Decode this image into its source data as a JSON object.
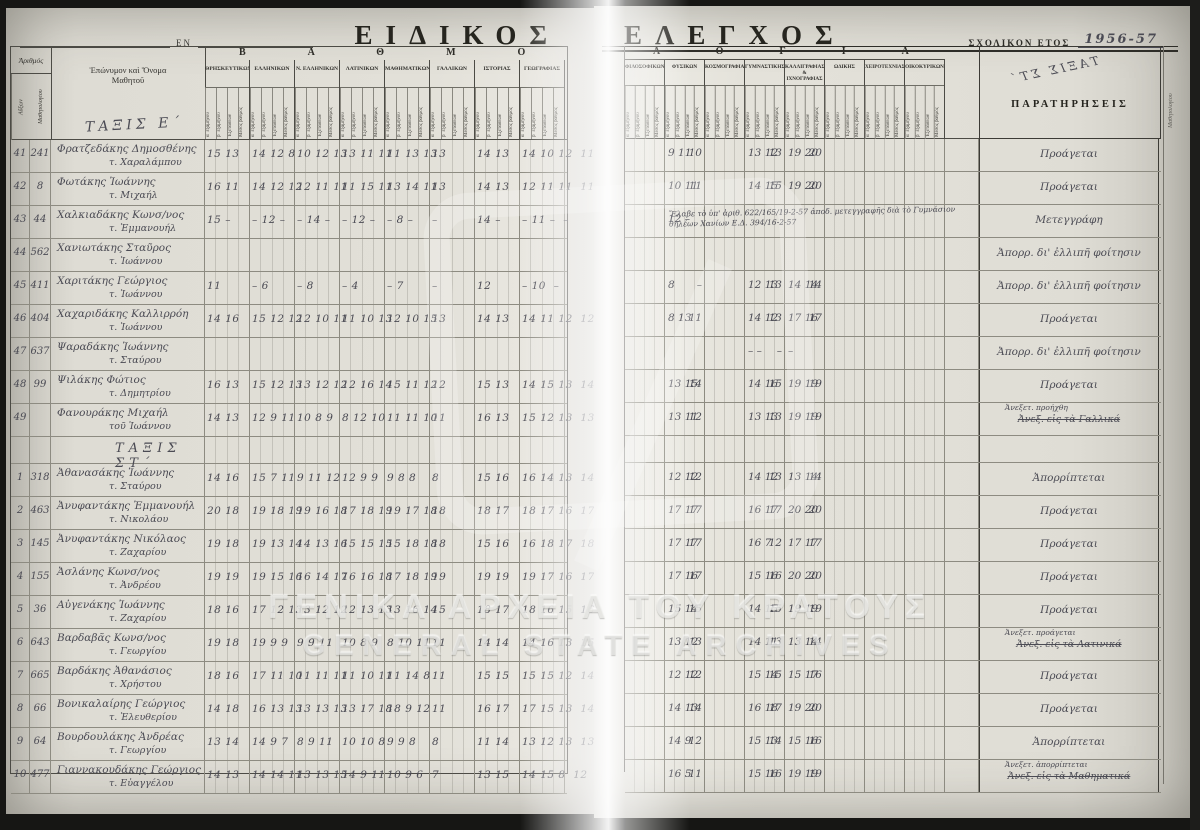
{
  "page_left": {
    "title": "ΕΙΔΙΚΟΣ",
    "en_label": "ΕΝ",
    "grade_band": "ΒΑΘΜΟ",
    "number_header": "Ἀριθμός",
    "number_sub1": "Αὔξων",
    "number_sub2": "Μαθητολογίου",
    "name_header_line1": "Ἐπώνυμον καὶ Ὄνομα",
    "name_header_line2": "Μαθητοῦ",
    "class_label": "ΤΑΞΙΣ Ε΄",
    "subjects": [
      "ΘΡΗΣΚΕΥΤΙΚΩΝ",
      "ΕΛΛΗΝΙΚΩΝ",
      "Ν. ΕΛΛΗΝΙΚΩΝ",
      "ΛΑΤΙΝΙΚΩΝ",
      "ΜΑΘΗΜΑΤΙΚΩΝ",
      "ΓΑΛΛΙΚΩΝ",
      "ΙΣΤΟΡΙΑΣ",
      "ΓΕΩΓΡΑΦΙΑΣ"
    ]
  },
  "page_right": {
    "title": "ΕΛΕΓΧΟΣ",
    "school_year_label": "ΣΧΟΛΙΚΟΝ ΕΤΟΣ",
    "school_year_value": "1956-57",
    "grade_band": "ΛΟΓΙΑ",
    "subjects": [
      "ΦΙΛΟΣΟΦΙΚΩΝ",
      "ΦΥΣΙΚΩΝ",
      "ΚΟΣΜΟΓΡΑΦΙΑΣ",
      "ΓΥΜΝΑΣΤΙΚΗΣ",
      "ΚΑΛΛΙΓΡΑΦΙΑΣ & ΙΧΝΟΓΡΑΦΙΑΣ",
      "ΩΔΙΚΗΣ",
      "ΧΕΙΡΟΤΕΧΝΙΑΣ",
      "ΟΙΚΟΚΥΡΙΚΩΝ"
    ],
    "remarks_header": "ΠΑΡΑΤΗΡΗΣΕΙΣ",
    "bleed_label": "ΤΑΞΙΣ ΣΤ΄",
    "edge_label": "Μαθητολογίου"
  },
  "sub_columns": [
    "α΄ ἑξαμήνου",
    "β΄ ἑξαμήνου",
    "Ἐξετάσεων",
    "Μέσος βαθμός"
  ],
  "watermark": {
    "line1": "ΓΕΝΙΚΑ ΑΡΧΕΙΑ ΤΟΥ ΚΡΑΤΟΥΣ",
    "line2": "GENERAL STATE ARCHIVES"
  },
  "rows": [
    {
      "type": "student",
      "num": "41",
      "reg": "241",
      "name": "Φρατζεδάκης Δημοσθένης",
      "patron": "τ. Χαραλάμπου",
      "left": [
        "15 13",
        "14 12 8",
        "10 12 13",
        "13 11 11",
        "11 13 13",
        "13",
        "14 13",
        "14 10 12  11"
      ],
      "fys_ab": "9 11",
      "fys_m": "10",
      "gym_ab": "13 12",
      "gym_m": "13",
      "kal_ab": "19 20",
      "kal_m": "20",
      "remark": "Προάγεται"
    },
    {
      "type": "student",
      "num": "42",
      "reg": "8",
      "name": "Φωτάκης Ἰωάννης",
      "patron": "τ. Μιχαήλ",
      "left": [
        "16 11",
        "14 12 12",
        "12 11 11",
        "11 15 11",
        "13 14 11",
        "13",
        "14 13",
        "12 11 11  11"
      ],
      "fys_ab": "10 11",
      "fys_m": "11",
      "gym_ab": "14 15",
      "gym_m": "15",
      "kal_ab": "19 20",
      "kal_m": "20",
      "remark": "Προάγεται"
    },
    {
      "type": "student",
      "num": "43",
      "reg": "44",
      "name": "Χαλκιαδάκης Κωνσ/νος",
      "patron": "τ. Ἐμμανουήλ",
      "left": [
        "15 –",
        "– 12 –",
        "– 14 –",
        "– 12 –",
        "– 8 –",
        "–",
        "14 –",
        "– 11 –  –"
      ],
      "fys_ab": "12 –",
      "fys_m": "",
      "note": "Ἔλαβε τὸ ὑπ' ἀριθ. 622/165/19-2-57 ἀποδ. μετεγγραφῆς διὰ τὸ Γυμνάσιον θηλέων Χανίων Ε.Δ. 394/16-2-57",
      "remark": "Μετεγγράφη"
    },
    {
      "type": "student",
      "num": "44",
      "reg": "562",
      "name": "Χανιωτάκης Σταῦρος",
      "patron": "τ. Ἰωάννου",
      "left": [
        "",
        "",
        "",
        "",
        "",
        "",
        "",
        ""
      ],
      "remark": "Ἀπορρ. δι' ἐλλιπῆ φοίτησιν"
    },
    {
      "type": "student",
      "num": "45",
      "reg": "411",
      "name": "Χαριτάκης Γεώργιος",
      "patron": "τ. Ἰωάννου",
      "left": [
        "11",
        "– 6",
        "– 8",
        "– 4",
        "– 7",
        "–",
        "12",
        "– 10  –"
      ],
      "fys_ab": "8",
      "fys_m": "–",
      "gym_ab": "12 13",
      "gym_m": "13",
      "kal_ab": "14 14",
      "kal_m": "14",
      "remark": "Ἀπορρ. δι' ἐλλιπῆ φοίτησιν"
    },
    {
      "type": "student",
      "num": "46",
      "reg": "404",
      "name": "Χαχαριδάκης Καλλιρρόη",
      "patron": "τ. Ἰωάννου",
      "left": [
        "14 16",
        "15 12 12",
        "12 10 11",
        "11 10 13",
        "12 10 15",
        "13",
        "14 13",
        "14 11 12  12"
      ],
      "fys_ab": "8 13",
      "fys_m": "11",
      "gym_ab": "14 12",
      "gym_m": "13",
      "kal_ab": "17 16",
      "kal_m": "17",
      "remark": "Προάγεται"
    },
    {
      "type": "student",
      "num": "47",
      "reg": "637",
      "name": "Ψαραδάκης Ἰωάννης",
      "patron": "τ. Σταύρου",
      "left": [
        "",
        "",
        "",
        "",
        "",
        "",
        "",
        ""
      ],
      "gym_ab": "– –",
      "gym_m": "–",
      "kal_ab": "–",
      "kal_m": "",
      "remark": "Ἀπορρ. δι' ἐλλιπῆ φοίτησιν"
    },
    {
      "type": "student",
      "num": "48",
      "reg": "99",
      "name": "Ψιλάκης Φώτιος",
      "patron": "τ. Δημητρίου",
      "left": [
        "16 13",
        "15 12 13",
        "13 12 12",
        "12 16 14",
        "15 11 12",
        "12",
        "15 13",
        "14 15 13  14"
      ],
      "fys_ab": "13 15",
      "fys_m": "14",
      "gym_ab": "14 16",
      "gym_m": "15",
      "kal_ab": "19 19",
      "kal_m": "19",
      "remark": "Προάγεται"
    },
    {
      "type": "student",
      "num": "49",
      "reg": "",
      "name": "Φανουράκης Μιχαήλ",
      "patron": "τοῦ Ἰωάννου",
      "left": [
        "14 13",
        "12 9 11",
        "10 8 9",
        "8 12 10",
        "11 11 10",
        "11",
        "16 13",
        "15 12 13  13"
      ],
      "fys_ab": "13 11",
      "fys_m": "12",
      "gym_ab": "13 13",
      "gym_m": "13",
      "kal_ab": "19 19",
      "kal_m": "19",
      "remark_top": "Ἀνεξετ. προήχθη",
      "remark_struck": "Ἀνεξ. εἰς τὰ Γαλλικά"
    },
    {
      "type": "section",
      "label": "ΤΑΞΙΣ ΣΤ΄"
    },
    {
      "type": "student",
      "num": "1",
      "reg": "318",
      "name": "Ἀθανασάκης Ἰωάννης",
      "patron": "τ. Σταύρου",
      "left": [
        "14 16",
        "15 7 11",
        "9 11 12",
        "12 9 9",
        "9 8 8",
        "8",
        "15 16",
        "16 14 13  14"
      ],
      "fys_ab": "12 12",
      "fys_m": "12",
      "gym_ab": "14 12",
      "gym_m": "13",
      "kal_ab": "13 14",
      "kal_m": "14",
      "remark": "Ἀπορρίπτεται"
    },
    {
      "type": "student",
      "num": "2",
      "reg": "463",
      "name": "Ἀνυφαντάκης Ἐμμανουήλ",
      "patron": "τ. Νικολάου",
      "left": [
        "20 18",
        "19 18 19",
        "19 16 18",
        "17 18 19",
        "19 17 18",
        "18",
        "18 17",
        "18 17 16  17"
      ],
      "fys_ab": "17 17",
      "fys_m": "17",
      "gym_ab": "16 17",
      "gym_m": "17",
      "kal_ab": "20 20",
      "kal_m": "20",
      "remark": "Προάγεται"
    },
    {
      "type": "student",
      "num": "3",
      "reg": "145",
      "name": "Ἀνυφαντάκης Νικόλαος",
      "patron": "τ. Ζαχαρίου",
      "left": [
        "19 18",
        "19 13 14",
        "14 13 16",
        "15 15 15",
        "15 18 18",
        "18",
        "15 16",
        "16 18 17  18"
      ],
      "fys_ab": "17 17",
      "fys_m": "17",
      "gym_ab": "16 7",
      "gym_m": "12",
      "kal_ab": "17 17",
      "kal_m": "17",
      "remark": "Προάγεται"
    },
    {
      "type": "student",
      "num": "4",
      "reg": "155",
      "name": "Ἀσλάνης Κωνσ/νος",
      "patron": "τ. Ἀνδρέου",
      "left": [
        "19 19",
        "19 15 16",
        "16 14 17",
        "16 16 18",
        "17 18 19",
        "19",
        "19 19",
        "19 17 16  17"
      ],
      "fys_ab": "17 16",
      "fys_m": "17",
      "gym_ab": "15 16",
      "gym_m": "16",
      "kal_ab": "20 20",
      "kal_m": "20",
      "remark": "Προάγεται"
    },
    {
      "type": "student",
      "num": "5",
      "reg": "36",
      "name": "Αὐγενάκης Ἰωάννης",
      "patron": "τ. Ζαχαρίου",
      "left": [
        "18 16",
        "17 12 13",
        "13 12 12",
        "12 13 13",
        "13 16 14",
        "15",
        "18 17",
        "18 16 15  16"
      ],
      "fys_ab": "15 14",
      "fys_m": "15",
      "gym_ab": "14 15",
      "gym_m": "15",
      "kal_ab": "19 19",
      "kal_m": "19",
      "remark": "Προάγεται"
    },
    {
      "type": "student",
      "num": "6",
      "reg": "643",
      "name": "Βαρδαβᾶς Κωνσ/νος",
      "patron": "τ. Γεωργίου",
      "left": [
        "19 18",
        "19 9 9",
        "9 9 11",
        "10 8 9",
        "8 10 11",
        "11",
        "14 14",
        "14 16 13  15"
      ],
      "fys_ab": "13 12",
      "fys_m": "13",
      "gym_ab": "14 11",
      "gym_m": "13",
      "kal_ab": "13 14",
      "kal_m": "14",
      "remark_top": "Ἀνεξετ. προάγεται",
      "remark_struck": "Ἀνεξ. εἰς τὰ Λατινικά"
    },
    {
      "type": "student",
      "num": "7",
      "reg": "665",
      "name": "Βαρδάκης Ἀθανάσιος",
      "patron": "τ. Χρήστου",
      "left": [
        "18 16",
        "17 11 10",
        "11 11 11",
        "11 10 11",
        "11 14 8",
        "11",
        "15 15",
        "15 15 12  14"
      ],
      "fys_ab": "12 12",
      "fys_m": "12",
      "gym_ab": "15 14",
      "gym_m": "15",
      "kal_ab": "15 17",
      "kal_m": "16",
      "remark": "Προάγεται"
    },
    {
      "type": "student",
      "num": "8",
      "reg": "66",
      "name": "Βονικαλαίρης Γεώργιος",
      "patron": "τ. Ἐλευθερίου",
      "left": [
        "14 18",
        "16 13 13",
        "13 13 13",
        "13 17 18",
        "18 9 12",
        "11",
        "16 17",
        "17 15 13  14"
      ],
      "fys_ab": "14 13",
      "fys_m": "14",
      "gym_ab": "16 18",
      "gym_m": "17",
      "kal_ab": "19 20",
      "kal_m": "20",
      "remark": "Προάγεται"
    },
    {
      "type": "student",
      "num": "9",
      "reg": "64",
      "name": "Βουρδουλάκης Ἀνδρέας",
      "patron": "τ. Γεωργίου",
      "left": [
        "13 14",
        "14 9 7",
        "8 9 11",
        "10 10 8",
        "9 9 8",
        "8",
        "11 14",
        "13 12 13  13"
      ],
      "fys_ab": "14 9",
      "fys_m": "12",
      "gym_ab": "15 13",
      "gym_m": "14",
      "kal_ab": "15 16",
      "kal_m": "16",
      "remark": "Ἀπορρίπτεται"
    },
    {
      "type": "student",
      "num": "10",
      "reg": "477",
      "name": "Γιαννακουδάκης Γεώργιος",
      "patron": "τ. Εὐαγγέλου",
      "left": [
        "14 13",
        "14 14 11",
        "13 13 15",
        "14 9 11",
        "10 9 6",
        "7",
        "13 15",
        "14 15 8  12"
      ],
      "fys_ab": "16 5",
      "fys_m": "11",
      "gym_ab": "15 16",
      "gym_m": "16",
      "kal_ab": "19 19",
      "kal_m": "19",
      "remark_top": "Ἀνεξετ. ἀπορρίπτεται",
      "remark_struck": "Ἀνεξ. εἰς τὰ Μαθηματικά"
    }
  ]
}
